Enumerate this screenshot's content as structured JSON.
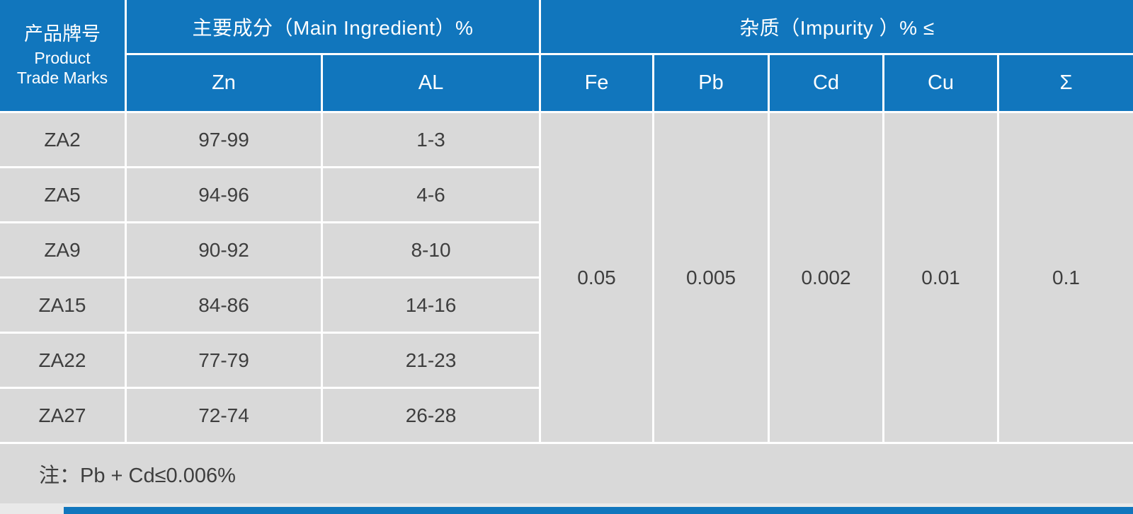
{
  "table": {
    "header": {
      "product_col": {
        "cn": "产品牌号",
        "en1": "Product",
        "en2": "Trade Marks"
      },
      "main_group": "主要成分（Main Ingredient）%",
      "impurity_group": "杂质（Impurity ）% ≤",
      "sub": {
        "zn": "Zn",
        "al": "AL",
        "fe": "Fe",
        "pb": "Pb",
        "cd": "Cd",
        "cu": "Cu",
        "sum": "Σ"
      }
    },
    "rows": [
      {
        "grade": "ZA2",
        "zn": "97-99",
        "al": "1-3"
      },
      {
        "grade": "ZA5",
        "zn": "94-96",
        "al": "4-6"
      },
      {
        "grade": "ZA9",
        "zn": "90-92",
        "al": "8-10"
      },
      {
        "grade": "ZA15",
        "zn": "84-86",
        "al": "14-16"
      },
      {
        "grade": "ZA22",
        "zn": "77-79",
        "al": "21-23"
      },
      {
        "grade": "ZA27",
        "zn": "72-74",
        "al": "26-28"
      }
    ],
    "impurity_limits": {
      "fe": "0.05",
      "pb": "0.005",
      "cd": "0.002",
      "cu": "0.01",
      "sum": "0.1"
    },
    "note": "注：Pb + Cd≤0.006%"
  },
  "colors": {
    "header_blue": "#1176bd",
    "cell_gray": "#d9d9d9",
    "divider_white": "#ffffff",
    "text_dark": "#3e3e3e",
    "footer_gray": "#e9e9e9"
  },
  "chart_data": {
    "type": "table",
    "title": "Zinc alloy composition specification",
    "columns": [
      "Product Trade Marks",
      "Zn %",
      "AL %",
      "Fe ≤",
      "Pb ≤",
      "Cd ≤",
      "Cu ≤",
      "Σ ≤"
    ],
    "rows": [
      [
        "ZA2",
        "97-99",
        "1-3",
        "0.05",
        "0.005",
        "0.002",
        "0.01",
        "0.1"
      ],
      [
        "ZA5",
        "94-96",
        "4-6",
        "0.05",
        "0.005",
        "0.002",
        "0.01",
        "0.1"
      ],
      [
        "ZA9",
        "90-92",
        "8-10",
        "0.05",
        "0.005",
        "0.002",
        "0.01",
        "0.1"
      ],
      [
        "ZA15",
        "84-86",
        "14-16",
        "0.05",
        "0.005",
        "0.002",
        "0.01",
        "0.1"
      ],
      [
        "ZA22",
        "77-79",
        "21-23",
        "0.05",
        "0.005",
        "0.002",
        "0.01",
        "0.1"
      ],
      [
        "ZA27",
        "72-74",
        "26-28",
        "0.05",
        "0.005",
        "0.002",
        "0.01",
        "0.1"
      ]
    ],
    "note": "Pb + Cd ≤ 0.006%"
  }
}
